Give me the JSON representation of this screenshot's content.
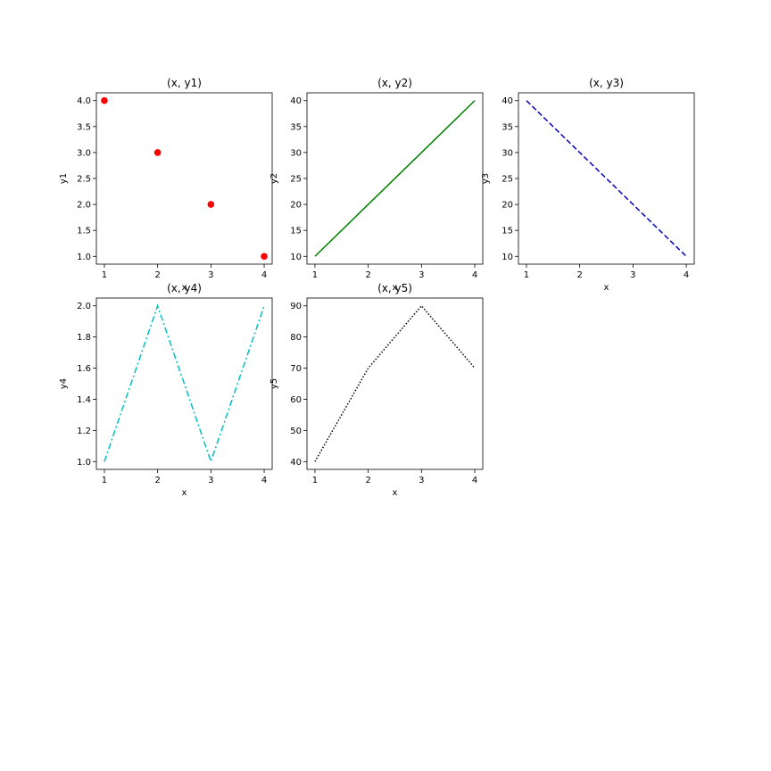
{
  "chart_data": [
    {
      "type": "scatter",
      "title": "(x, y1)",
      "xlabel": "x",
      "ylabel": "y1",
      "x": [
        1,
        2,
        3,
        4
      ],
      "y": [
        4,
        3,
        2,
        1
      ],
      "xlim": [
        0.85,
        4.15
      ],
      "ylim": [
        0.85,
        4.15
      ],
      "xticks": [
        "1",
        "2",
        "3",
        "4"
      ],
      "yticks": [
        "1.0",
        "1.5",
        "2.0",
        "2.5",
        "3.0",
        "3.5",
        "4.0"
      ],
      "color": "#ff0000",
      "style": "circle-markers",
      "grid": false
    },
    {
      "type": "line",
      "title": "(x, y2)",
      "xlabel": "x",
      "ylabel": "y2",
      "x": [
        1,
        2,
        3,
        4
      ],
      "y": [
        10,
        20,
        30,
        40
      ],
      "xlim": [
        0.85,
        4.15
      ],
      "ylim": [
        8.5,
        41.5
      ],
      "xticks": [
        "1",
        "2",
        "3",
        "4"
      ],
      "yticks": [
        "10",
        "15",
        "20",
        "25",
        "30",
        "35",
        "40"
      ],
      "color": "#008000",
      "style": "solid",
      "grid": false
    },
    {
      "type": "line",
      "title": "(x, y3)",
      "xlabel": "x",
      "ylabel": "y3",
      "x": [
        1,
        2,
        3,
        4
      ],
      "y": [
        40,
        30,
        20,
        10
      ],
      "xlim": [
        0.85,
        4.15
      ],
      "ylim": [
        8.5,
        41.5
      ],
      "xticks": [
        "1",
        "2",
        "3",
        "4"
      ],
      "yticks": [
        "10",
        "15",
        "20",
        "25",
        "30",
        "35",
        "40"
      ],
      "color": "#0000bf",
      "style": "dashed",
      "grid": false
    },
    {
      "type": "line",
      "title": "(x, y4)",
      "xlabel": "x",
      "ylabel": "y4",
      "x": [
        1,
        2,
        3,
        4
      ],
      "y": [
        1,
        2,
        1,
        2
      ],
      "xlim": [
        0.85,
        4.15
      ],
      "ylim": [
        0.95,
        2.05
      ],
      "xticks": [
        "1",
        "2",
        "3",
        "4"
      ],
      "yticks": [
        "1.0",
        "1.2",
        "1.4",
        "1.6",
        "1.8",
        "2.0"
      ],
      "color": "#00bfbf",
      "style": "dashdot",
      "grid": false
    },
    {
      "type": "line",
      "title": "(x, y5)",
      "xlabel": "x",
      "ylabel": "y5",
      "x": [
        1,
        2,
        3,
        4
      ],
      "y": [
        40,
        70,
        90,
        70
      ],
      "xlim": [
        0.85,
        4.15
      ],
      "ylim": [
        37.5,
        92.5
      ],
      "xticks": [
        "1",
        "2",
        "3",
        "4"
      ],
      "yticks": [
        "40",
        "50",
        "60",
        "70",
        "80",
        "90"
      ],
      "color": "#000000",
      "style": "dotted",
      "grid": false
    }
  ]
}
